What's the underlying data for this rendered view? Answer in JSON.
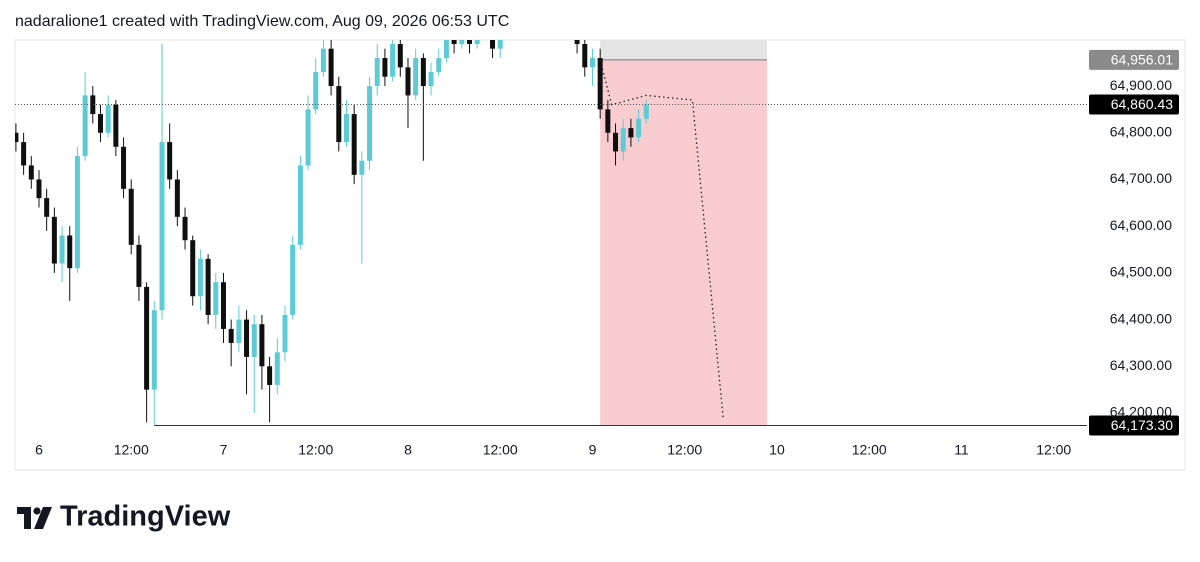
{
  "header": "nadaralione1 created with TradingView.com, Aug 09, 2026 06:53 UTC",
  "logo": "TradingView",
  "chart_data": {
    "type": "candlestick",
    "up_color": "#5ccbd6",
    "down_color": "#0f0f0f",
    "x": [
      -3,
      -2,
      -1,
      0,
      1,
      2,
      3,
      4,
      5,
      6,
      7,
      8,
      9,
      10,
      11,
      12,
      13,
      14,
      15,
      16,
      17,
      18,
      19,
      20,
      21,
      22,
      23,
      24,
      25,
      26,
      27,
      28,
      29,
      30,
      31,
      32,
      33,
      34,
      35,
      36,
      37,
      38,
      39,
      40,
      41,
      42,
      43,
      44,
      45,
      46,
      47,
      48,
      49,
      50,
      51,
      52,
      53,
      54,
      55,
      56,
      57,
      58,
      59,
      60,
      61,
      62,
      63,
      64,
      65,
      66,
      67,
      68,
      69,
      70,
      71,
      72,
      73,
      74,
      75,
      76,
      77,
      78,
      79
    ],
    "open": [
      64800,
      64780,
      64730,
      64700,
      64660,
      64620,
      64520,
      64580,
      64510,
      64750,
      64880,
      64840,
      64800,
      64860,
      64770,
      64680,
      64560,
      64470,
      64250,
      64420,
      64780,
      64700,
      64620,
      64570,
      64450,
      64530,
      64410,
      64480,
      64380,
      64350,
      64400,
      64320,
      64390,
      64300,
      64260,
      64330,
      64410,
      64560,
      64730,
      64850,
      64930,
      64980,
      64900,
      64780,
      64840,
      64710,
      64740,
      64900,
      64960,
      64920,
      64990,
      64940,
      64880,
      64960,
      64900,
      64930,
      64960,
      65010,
      64990,
      65020,
      64990,
      65020,
      65030,
      64980,
      65020,
      65040,
      65060,
      65030,
      65050,
      65070,
      65040,
      65030,
      65050,
      65020,
      64990,
      64940,
      64960,
      64850,
      64800,
      64760,
      64810,
      64790,
      64830
    ],
    "high": [
      64820,
      64800,
      64750,
      64720,
      64680,
      64640,
      64600,
      64600,
      64770,
      64930,
      64900,
      64860,
      64880,
      64870,
      64790,
      64700,
      64580,
      64480,
      64440,
      64990,
      64820,
      64720,
      64640,
      64580,
      64550,
      64540,
      64500,
      64500,
      64400,
      64430,
      64420,
      64410,
      64410,
      64320,
      64360,
      64430,
      64580,
      64750,
      64880,
      64960,
      65010,
      65000,
      64920,
      64870,
      64860,
      64760,
      64920,
      64990,
      64980,
      65010,
      65000,
      64960,
      64980,
      64970,
      64950,
      64980,
      65030,
      65030,
      65040,
      65030,
      65040,
      65050,
      65040,
      65040,
      65060,
      65080,
      65080,
      65070,
      65090,
      65090,
      65060,
      65070,
      65070,
      65040,
      65010,
      64980,
      64980,
      64870,
      64820,
      64830,
      64830,
      64850,
      64870
    ],
    "low": [
      64760,
      64710,
      64680,
      64640,
      64590,
      64500,
      64480,
      64440,
      64500,
      64740,
      64820,
      64780,
      64790,
      64750,
      64660,
      64540,
      64440,
      64180,
      64173.3,
      64400,
      64680,
      64600,
      64550,
      64430,
      64420,
      64390,
      64380,
      64350,
      64300,
      64330,
      64240,
      64200,
      64250,
      64180,
      64240,
      64310,
      64400,
      64550,
      64720,
      64840,
      64920,
      64880,
      64760,
      64770,
      64690,
      64520,
      64720,
      64880,
      64900,
      64910,
      64920,
      64810,
      64870,
      64740,
      64880,
      64920,
      64950,
      64970,
      64980,
      64970,
      64980,
      65000,
      64960,
      64960,
      65000,
      65020,
      65010,
      65010,
      65030,
      65020,
      65010,
      65010,
      65000,
      64970,
      64920,
      64900,
      64830,
      64780,
      64730,
      64740,
      64770,
      64780,
      64820
    ],
    "close": [
      64780,
      64730,
      64700,
      64660,
      64620,
      64520,
      64580,
      64510,
      64750,
      64880,
      64840,
      64800,
      64860,
      64770,
      64680,
      64560,
      64470,
      64250,
      64420,
      64780,
      64700,
      64620,
      64570,
      64450,
      64530,
      64410,
      64480,
      64380,
      64350,
      64400,
      64320,
      64390,
      64300,
      64260,
      64330,
      64410,
      64560,
      64730,
      64850,
      64930,
      64980,
      64900,
      64780,
      64840,
      64710,
      64740,
      64900,
      64960,
      64920,
      64990,
      64940,
      64880,
      64960,
      64900,
      64930,
      64960,
      65010,
      64990,
      65020,
      64990,
      65020,
      65030,
      64980,
      65020,
      65040,
      65060,
      65030,
      65050,
      65070,
      65040,
      65030,
      65050,
      65020,
      64990,
      64940,
      64960,
      64850,
      64800,
      64760,
      64810,
      64790,
      64830,
      64860.43
    ],
    "xlim": [
      -3.12,
      136.33
    ],
    "ylim": [
      64163.6,
      64998.6
    ],
    "xticks": [
      {
        "value": 0,
        "label": "6"
      },
      {
        "value": 12,
        "label": "12:00"
      },
      {
        "value": 24,
        "label": "7"
      },
      {
        "value": 36,
        "label": "12:00"
      },
      {
        "value": 48,
        "label": "8"
      },
      {
        "value": 60,
        "label": "12:00"
      },
      {
        "value": 72,
        "label": "9"
      },
      {
        "value": 84,
        "label": "12:00"
      },
      {
        "value": 96,
        "label": "10"
      },
      {
        "value": 108,
        "label": "12:00"
      },
      {
        "value": 120,
        "label": "11"
      },
      {
        "value": 132,
        "label": "12:00"
      }
    ],
    "yticks": [
      {
        "value": 64200,
        "label": "64,200.00"
      },
      {
        "value": 64300,
        "label": "64,300.00"
      },
      {
        "value": 64400,
        "label": "64,400.00"
      },
      {
        "value": 64500,
        "label": "64,500.00"
      },
      {
        "value": 64600,
        "label": "64,600.00"
      },
      {
        "value": 64700,
        "label": "64,700.00"
      },
      {
        "value": 64800,
        "label": "64,800.00"
      },
      {
        "value": 64900,
        "label": "64,900.00"
      }
    ],
    "price_labels": [
      {
        "value": 64956.01,
        "label": "64,956.01",
        "color": "#8a8a8a"
      },
      {
        "value": 64860.43,
        "label": "64,860.43",
        "color": "#000000"
      },
      {
        "value": 64173.3,
        "label": "64,173.30",
        "color": "#000000"
      }
    ],
    "zone": {
      "x": [
        73,
        94.7
      ],
      "color": "#f9cdd0",
      "top_color": "#e4e4e4"
    },
    "projection": {
      "x": [
        73,
        74.5,
        79,
        85,
        89
      ],
      "y": [
        64956.01,
        64860,
        64880,
        64870,
        64190
      ]
    }
  }
}
